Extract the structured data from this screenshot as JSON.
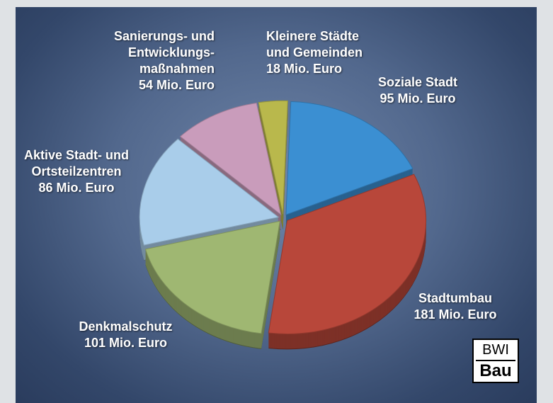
{
  "chart_data": {
    "type": "pie",
    "categories": [
      "Soziale Stadt",
      "Stadtumbau",
      "Denkmalschutz",
      "Aktive Stadt- und\nOrtsteilzentren",
      "Sanierungs- und\nEntwicklungs-\nmaßnahmen",
      "Kleinere Städte\nund Gemeinden"
    ],
    "values": [
      95,
      181,
      101,
      86,
      54,
      18
    ],
    "value_labels": [
      "95 Mio. Euro",
      "181 Mio. Euro",
      "101 Mio. Euro",
      "86 Mio. Euro",
      "54 Mio. Euro",
      "18 Mio. Euro"
    ],
    "colors": [
      "#3b8fd2",
      "#b8473a",
      "#9fb772",
      "#a9cdea",
      "#c99cbb",
      "#b9b84c"
    ]
  },
  "logo": {
    "line1": "BWI",
    "line2": "Bau"
  }
}
